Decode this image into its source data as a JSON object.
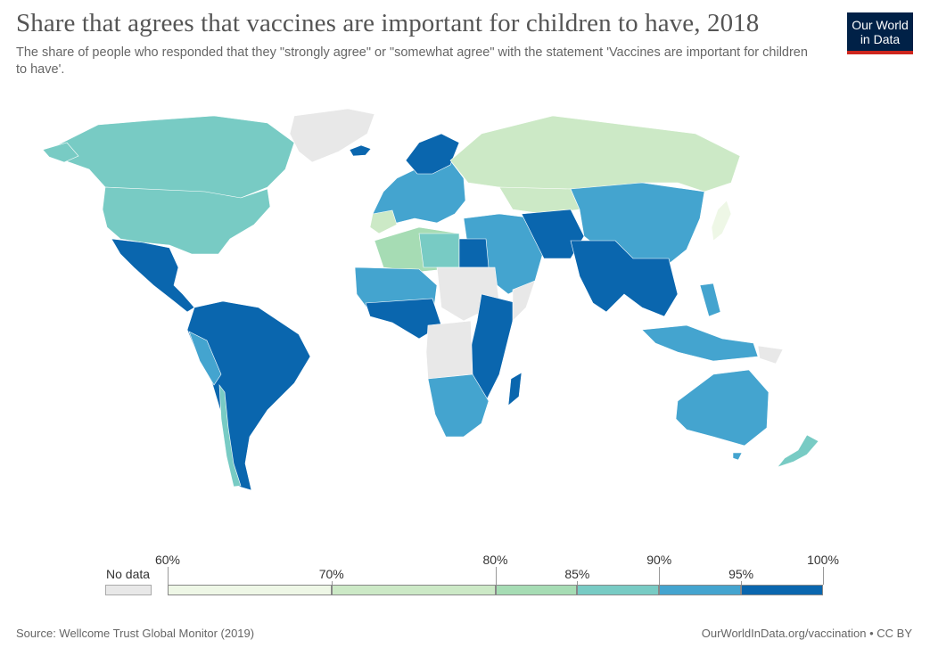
{
  "header": {
    "title": "Share that agrees that vaccines are important for children to have, 2018",
    "subtitle": "The share of people who responded that they \"strongly agree\" or \"somewhat agree\" with the statement 'Vaccines are important for children to have'."
  },
  "logo": {
    "line1": "Our World",
    "line2": "in Data"
  },
  "legend": {
    "no_data_label": "No data",
    "no_data_color": "#e8e8e8",
    "ticks": [
      "60%",
      "70%",
      "80%",
      "85%",
      "90%",
      "95%",
      "100%"
    ],
    "bins": [
      {
        "from": 60,
        "to": 70,
        "color": "#eef7e6"
      },
      {
        "from": 70,
        "to": 80,
        "color": "#cce9c6"
      },
      {
        "from": 80,
        "to": 85,
        "color": "#a6dcb4"
      },
      {
        "from": 85,
        "to": 90,
        "color": "#78cbc4"
      },
      {
        "from": 90,
        "to": 95,
        "color": "#44a4cf"
      },
      {
        "from": 95,
        "to": 100,
        "color": "#0a66ae"
      }
    ]
  },
  "colors": {
    "ocean": "#ffffff",
    "border": "#ffffff",
    "bin_60_70": "#eef7e6",
    "bin_70_80": "#cce9c6",
    "bin_80_85": "#a6dcb4",
    "bin_85_90": "#78cbc4",
    "bin_90_95": "#44a4cf",
    "bin_95_100": "#0a66ae",
    "no_data": "#e8e8e8"
  },
  "footer": {
    "source": "Source: Wellcome Trust Global Monitor (2019)",
    "url": "OurWorldInData.org/vaccination • CC BY"
  }
}
